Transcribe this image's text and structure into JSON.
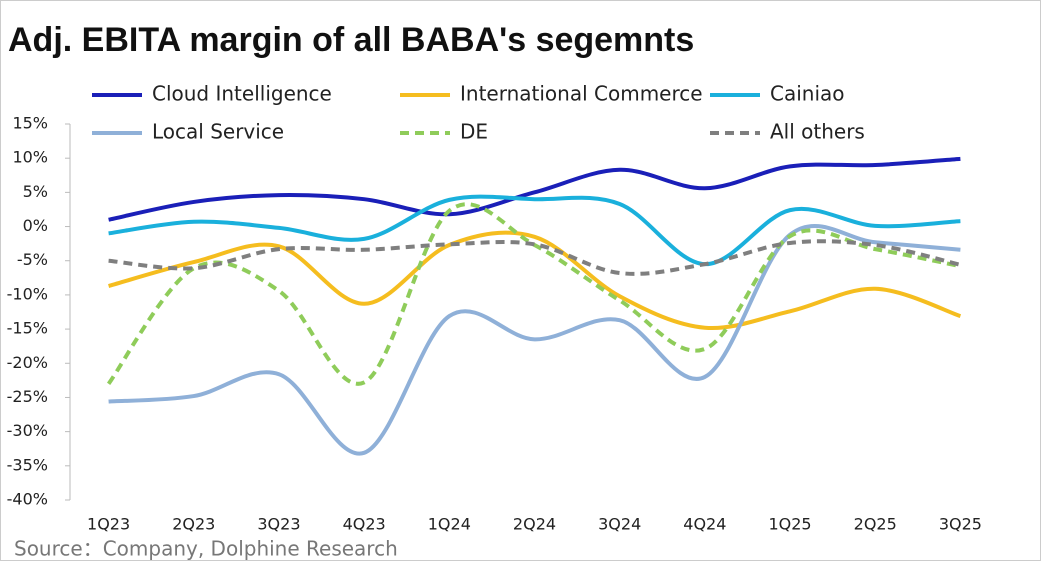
{
  "chart_data": {
    "type": "line",
    "title": "Adj. EBITA margin of all BABA's segemnts",
    "source": "Source：Company, Dolphine Research",
    "categories": [
      "1Q23",
      "2Q23",
      "3Q23",
      "4Q23",
      "1Q24",
      "2Q24",
      "3Q24",
      "4Q24",
      "1Q25",
      "2Q25",
      "3Q25"
    ],
    "series": [
      {
        "name": "Cloud Intelligence",
        "color": "#1a1fb8",
        "dashed": false,
        "values": [
          1.0,
          3.6,
          4.6,
          4.0,
          1.8,
          5.0,
          8.3,
          5.6,
          8.8,
          9.0,
          9.9
        ]
      },
      {
        "name": "International Commerce",
        "color": "#f5bd1f",
        "dashed": false,
        "values": [
          -8.7,
          -5.2,
          -2.9,
          -11.3,
          -2.7,
          -1.5,
          -10.2,
          -14.8,
          -12.4,
          -9.1,
          -13.1
        ]
      },
      {
        "name": "Cainiao",
        "color": "#1ab0dc",
        "dashed": false,
        "values": [
          -1.0,
          0.7,
          -0.2,
          -1.8,
          3.9,
          4.0,
          3.3,
          -5.5,
          2.4,
          0.1,
          0.8
        ]
      },
      {
        "name": "Local Service",
        "color": "#8fb0d8",
        "dashed": false,
        "values": [
          -25.6,
          -24.8,
          -21.6,
          -33.1,
          -13.1,
          -16.5,
          -13.7,
          -22.0,
          -1.2,
          -2.3,
          -3.4
        ]
      },
      {
        "name": "DE",
        "color": "#8fcc5a",
        "dashed": true,
        "values": [
          -23.0,
          -6.1,
          -9.4,
          -22.8,
          2.3,
          -2.7,
          -10.8,
          -17.9,
          -1.4,
          -3.3,
          -5.8
        ]
      },
      {
        "name": "All others",
        "color": "#7f7f7f",
        "dashed": true,
        "values": [
          -5.0,
          -6.1,
          -3.3,
          -3.4,
          -2.6,
          -2.6,
          -6.8,
          -5.5,
          -2.4,
          -2.7,
          -5.6
        ]
      }
    ],
    "ylim": [
      -40,
      15
    ],
    "yticks": [
      {
        "value": 15,
        "label": "15%"
      },
      {
        "value": 10,
        "label": "10%"
      },
      {
        "value": 5,
        "label": "5%"
      },
      {
        "value": 0,
        "label": "0%"
      },
      {
        "value": -5,
        "label": "-5%"
      },
      {
        "value": -10,
        "label": "-10%"
      },
      {
        "value": -15,
        "label": "-15%"
      },
      {
        "value": -20,
        "label": "-20%"
      },
      {
        "value": -25,
        "label": "-25%"
      },
      {
        "value": -30,
        "label": "-30%"
      },
      {
        "value": -35,
        "label": "-35%"
      },
      {
        "value": -40,
        "label": "-40%"
      }
    ],
    "grid": false
  }
}
